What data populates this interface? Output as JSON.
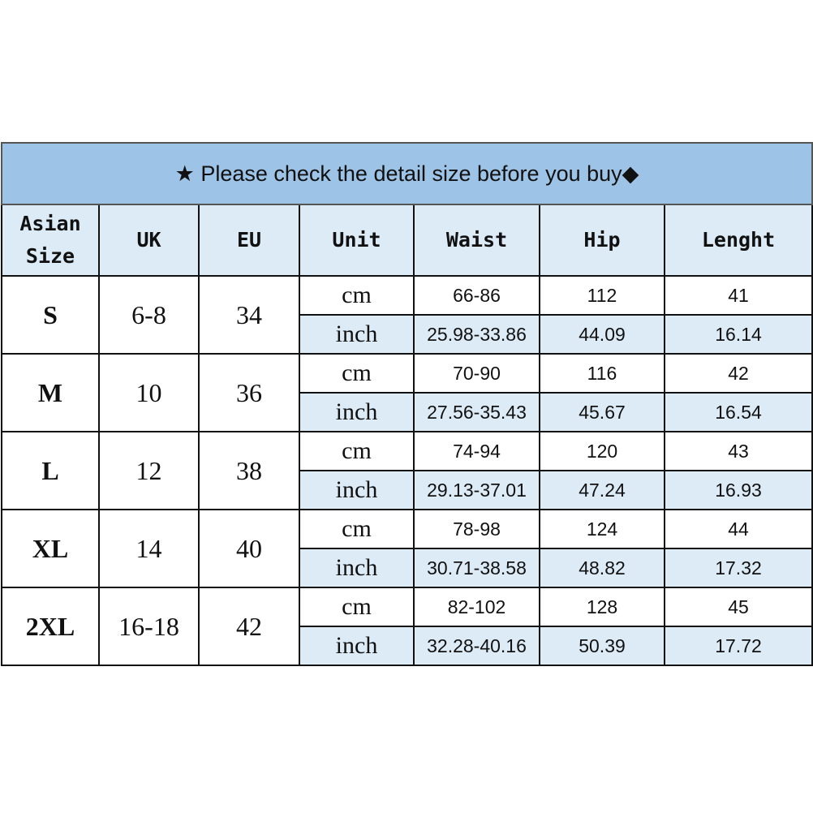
{
  "title": "★ Please check the detail size before you buy◆",
  "headers": [
    "Asian Size",
    "UK",
    "EU",
    "Unit",
    "Waist",
    "Hip",
    "Lenght"
  ],
  "colors": {
    "title_bg": "#9dc3e6",
    "header_bg": "#ddebf7",
    "inch_row_bg": "#ddebf7"
  },
  "rows": [
    {
      "size": "S",
      "uk": "6-8",
      "eu": "34",
      "cm": {
        "unit": "cm",
        "waist": "66-86",
        "hip": "112",
        "length": "41"
      },
      "inch": {
        "unit": "inch",
        "waist": "25.98-33.86",
        "hip": "44.09",
        "length": "16.14"
      }
    },
    {
      "size": "M",
      "uk": "10",
      "eu": "36",
      "cm": {
        "unit": "cm",
        "waist": "70-90",
        "hip": "116",
        "length": "42"
      },
      "inch": {
        "unit": "inch",
        "waist": "27.56-35.43",
        "hip": "45.67",
        "length": "16.54"
      }
    },
    {
      "size": "L",
      "uk": "12",
      "eu": "38",
      "cm": {
        "unit": "cm",
        "waist": "74-94",
        "hip": "120",
        "length": "43"
      },
      "inch": {
        "unit": "inch",
        "waist": "29.13-37.01",
        "hip": "47.24",
        "length": "16.93"
      }
    },
    {
      "size": "XL",
      "uk": "14",
      "eu": "40",
      "cm": {
        "unit": "cm",
        "waist": "78-98",
        "hip": "124",
        "length": "44"
      },
      "inch": {
        "unit": "inch",
        "waist": "30.71-38.58",
        "hip": "48.82",
        "length": "17.32"
      }
    },
    {
      "size": "2XL",
      "uk": "16-18",
      "eu": "42",
      "cm": {
        "unit": "cm",
        "waist": "82-102",
        "hip": "128",
        "length": "45"
      },
      "inch": {
        "unit": "inch",
        "waist": "32.28-40.16",
        "hip": "50.39",
        "length": "17.72"
      }
    }
  ]
}
